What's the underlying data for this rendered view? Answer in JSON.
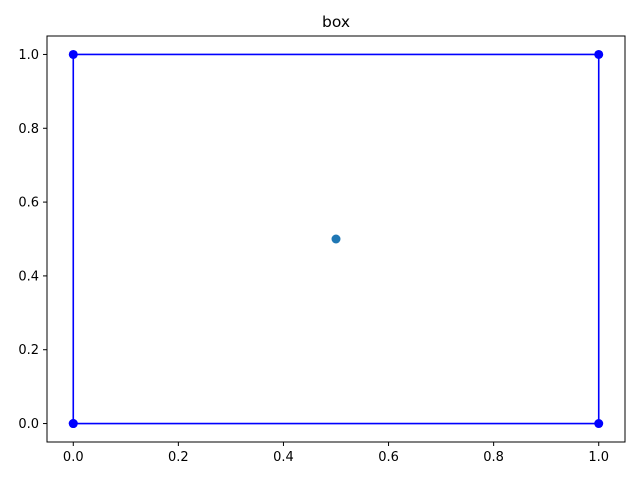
{
  "chart_data": {
    "type": "line",
    "title": "box",
    "xlabel": "",
    "ylabel": "",
    "xlim": [
      -0.05,
      1.05
    ],
    "ylim": [
      -0.05,
      1.05
    ],
    "xticks": [
      0.0,
      0.2,
      0.4,
      0.6,
      0.8,
      1.0
    ],
    "yticks": [
      0.0,
      0.2,
      0.4,
      0.6,
      0.8,
      1.0
    ],
    "xtick_labels": [
      "0.0",
      "0.2",
      "0.4",
      "0.6",
      "0.8",
      "1.0"
    ],
    "ytick_labels": [
      "0.0",
      "0.2",
      "0.4",
      "0.6",
      "0.8",
      "1.0"
    ],
    "grid": false,
    "legend": false,
    "series": [
      {
        "kind": "line",
        "color": "#0000ff",
        "marker": "circle",
        "points": [
          {
            "x": 0,
            "y": 0
          },
          {
            "x": 1,
            "y": 0
          },
          {
            "x": 1,
            "y": 1
          },
          {
            "x": 0,
            "y": 1
          },
          {
            "x": 0,
            "y": 0
          }
        ]
      },
      {
        "kind": "scatter",
        "color": "#1f77b4",
        "marker": "circle",
        "points": [
          {
            "x": 0.5,
            "y": 0.5
          }
        ]
      }
    ]
  }
}
